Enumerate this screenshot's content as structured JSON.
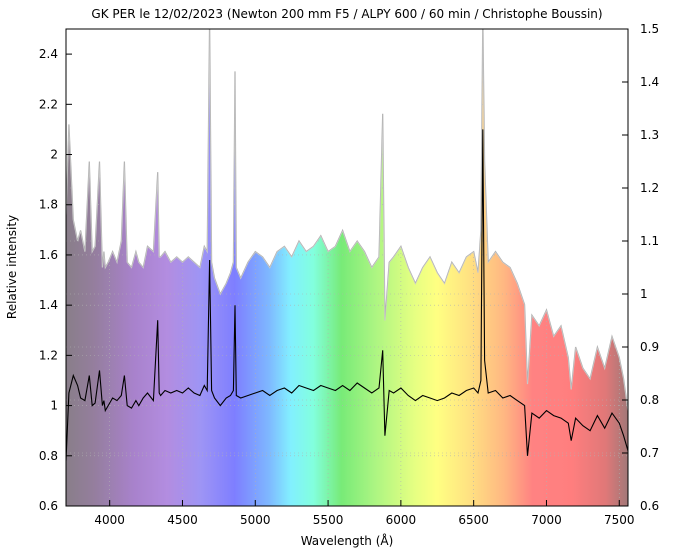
{
  "chart_data": {
    "type": "line",
    "title": "GK PER le 12/02/2023 (Newton 200 mm F5 / ALPY 600 / 60 min / Christophe Boussin)",
    "xlabel": "Wavelength (Å)",
    "ylabel": "Relative intensity",
    "xlim": [
      3700,
      7560
    ],
    "ylim": [
      0.6,
      2.5
    ],
    "y2lim": [
      0.6,
      1.5
    ],
    "x_ticks": [
      4000,
      4500,
      5000,
      5500,
      6000,
      6500,
      7000,
      7500
    ],
    "y_ticks": [
      0.6,
      0.8,
      1,
      1.2,
      1.4,
      1.6,
      1.8,
      2,
      2.2,
      2.4
    ],
    "y2_ticks": [
      0.6,
      0.7,
      0.8,
      0.9,
      1,
      1.1,
      1.2,
      1.3,
      1.4,
      1.5
    ],
    "grid": true,
    "background": "visible spectrum color band",
    "series": [
      {
        "axis": "left",
        "color": "#000000",
        "x": [
          3700,
          3720,
          3750,
          3780,
          3800,
          3830,
          3860,
          3880,
          3900,
          3930,
          3950,
          3960,
          3970,
          3990,
          4020,
          4050,
          4080,
          4101,
          4120,
          4150,
          4180,
          4200,
          4230,
          4260,
          4300,
          4330,
          4340,
          4350,
          4380,
          4420,
          4460,
          4500,
          4540,
          4580,
          4620,
          4650,
          4670,
          4686,
          4700,
          4720,
          4760,
          4800,
          4830,
          4850,
          4861,
          4870,
          4900,
          4950,
          5000,
          5050,
          5100,
          5150,
          5200,
          5250,
          5300,
          5350,
          5400,
          5450,
          5500,
          5550,
          5600,
          5650,
          5700,
          5750,
          5800,
          5850,
          5875,
          5890,
          5920,
          5950,
          6000,
          6050,
          6100,
          6150,
          6200,
          6250,
          6300,
          6350,
          6400,
          6450,
          6500,
          6530,
          6550,
          6563,
          6575,
          6600,
          6650,
          6700,
          6750,
          6800,
          6850,
          6870,
          6900,
          6950,
          7000,
          7050,
          7100,
          7150,
          7170,
          7200,
          7250,
          7300,
          7350,
          7400,
          7450,
          7500,
          7530,
          7560
        ],
        "values": [
          0.78,
          1.05,
          1.12,
          1.08,
          1.03,
          1.02,
          1.12,
          1.0,
          1.01,
          1.14,
          1.0,
          1.02,
          0.98,
          1.0,
          1.03,
          1.02,
          1.04,
          1.12,
          1.0,
          0.99,
          1.02,
          1.0,
          1.03,
          1.05,
          1.02,
          1.34,
          1.05,
          1.04,
          1.06,
          1.05,
          1.06,
          1.05,
          1.07,
          1.05,
          1.04,
          1.08,
          1.06,
          1.58,
          1.06,
          1.03,
          1.0,
          1.03,
          1.04,
          1.06,
          1.4,
          1.04,
          1.03,
          1.04,
          1.05,
          1.06,
          1.04,
          1.06,
          1.07,
          1.05,
          1.08,
          1.07,
          1.06,
          1.08,
          1.07,
          1.06,
          1.08,
          1.06,
          1.09,
          1.07,
          1.05,
          1.07,
          1.22,
          0.88,
          1.06,
          1.05,
          1.07,
          1.04,
          1.02,
          1.04,
          1.03,
          1.02,
          1.03,
          1.05,
          1.04,
          1.06,
          1.07,
          1.05,
          1.1,
          2.1,
          1.18,
          1.05,
          1.06,
          1.03,
          1.04,
          1.02,
          1.0,
          0.8,
          0.97,
          0.95,
          0.98,
          0.96,
          0.95,
          0.93,
          0.86,
          0.95,
          0.92,
          0.9,
          0.96,
          0.91,
          0.97,
          0.93,
          0.88,
          0.82
        ]
      },
      {
        "axis": "right",
        "color": "#b0b0b0",
        "x": [
          3700,
          3720,
          3750,
          3780,
          3800,
          3830,
          3860,
          3880,
          3900,
          3930,
          3950,
          3960,
          3970,
          3990,
          4020,
          4050,
          4080,
          4101,
          4120,
          4150,
          4180,
          4200,
          4230,
          4260,
          4300,
          4330,
          4340,
          4350,
          4380,
          4420,
          4460,
          4500,
          4540,
          4580,
          4620,
          4650,
          4670,
          4686,
          4700,
          4720,
          4760,
          4800,
          4830,
          4850,
          4861,
          4870,
          4900,
          4950,
          5000,
          5050,
          5100,
          5150,
          5200,
          5250,
          5300,
          5350,
          5400,
          5450,
          5500,
          5550,
          5600,
          5650,
          5700,
          5750,
          5800,
          5850,
          5875,
          5890,
          5920,
          5950,
          6000,
          6050,
          6100,
          6150,
          6200,
          6250,
          6300,
          6350,
          6400,
          6450,
          6500,
          6530,
          6550,
          6563,
          6575,
          6600,
          6650,
          6700,
          6750,
          6800,
          6850,
          6870,
          6900,
          6950,
          7000,
          7050,
          7100,
          7150,
          7170,
          7200,
          7250,
          7300,
          7350,
          7400,
          7450,
          7500,
          7530,
          7560
        ],
        "values": [
          1.15,
          1.32,
          1.14,
          1.1,
          1.12,
          1.08,
          1.25,
          1.08,
          1.09,
          1.25,
          1.05,
          1.08,
          1.05,
          1.06,
          1.08,
          1.06,
          1.1,
          1.25,
          1.06,
          1.05,
          1.08,
          1.06,
          1.05,
          1.09,
          1.08,
          1.23,
          1.07,
          1.07,
          1.08,
          1.06,
          1.07,
          1.06,
          1.07,
          1.06,
          1.05,
          1.09,
          1.08,
          1.52,
          1.06,
          1.03,
          1.0,
          1.02,
          1.04,
          1.06,
          1.42,
          1.05,
          1.03,
          1.06,
          1.08,
          1.07,
          1.05,
          1.08,
          1.09,
          1.07,
          1.1,
          1.08,
          1.09,
          1.11,
          1.08,
          1.09,
          1.12,
          1.08,
          1.1,
          1.08,
          1.05,
          1.07,
          1.34,
          0.95,
          1.06,
          1.07,
          1.09,
          1.05,
          1.02,
          1.05,
          1.07,
          1.04,
          1.02,
          1.06,
          1.04,
          1.07,
          1.08,
          1.04,
          1.12,
          1.52,
          1.25,
          1.06,
          1.08,
          1.06,
          1.05,
          1.02,
          0.98,
          0.83,
          0.96,
          0.94,
          0.97,
          0.92,
          0.94,
          0.88,
          0.82,
          0.9,
          0.86,
          0.84,
          0.9,
          0.86,
          0.92,
          0.88,
          0.84,
          0.78
        ]
      }
    ]
  }
}
